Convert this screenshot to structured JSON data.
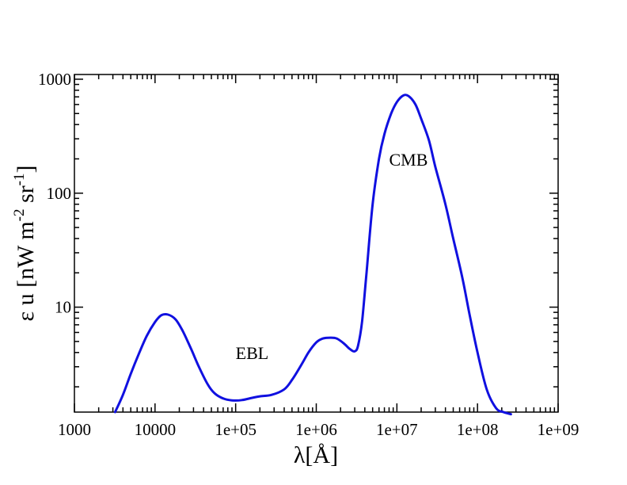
{
  "chart_data": {
    "type": "line",
    "title": "",
    "xlabel": "λ[Å]",
    "ylabel_main": "ε u [nW m",
    "ylabel_sup1": "-2",
    "ylabel_mid": " sr",
    "ylabel_sup2": "-1",
    "ylabel_end": "]",
    "x_scale": "log",
    "y_scale": "log",
    "xlim": [
      1000,
      1000000000
    ],
    "ylim": [
      1.2,
      1100
    ],
    "x_tick_labels": [
      "1000",
      "10000",
      "1e+05",
      "1e+06",
      "1e+07",
      "1e+08",
      "1e+09"
    ],
    "x_tick_values": [
      1000,
      10000,
      100000,
      1000000,
      10000000,
      100000000,
      1000000000
    ],
    "y_tick_labels": [
      "10",
      "100",
      "1000"
    ],
    "y_tick_values": [
      10,
      100,
      1000
    ],
    "grid": false,
    "annotations": [
      {
        "text": "EBL",
        "x": 100000,
        "y": 3.5
      },
      {
        "text": "CMB",
        "x": 8000000,
        "y": 175
      }
    ],
    "series": [
      {
        "name": "",
        "color": "#1010e0",
        "x": [
          3200,
          4000,
          5000,
          6300,
          7900,
          10000,
          12000,
          14500,
          18000,
          22000,
          28000,
          35000,
          45000,
          55000,
          70000,
          90000,
          120000,
          160000,
          200000,
          280000,
          400000,
          500000,
          650000,
          800000,
          1000000,
          1200000,
          1500000,
          1800000,
          2200000,
          2600000,
          3000000,
          3300000,
          3700000,
          4200000,
          5000000,
          6000000,
          7000000,
          8500000,
          10000000,
          12000000,
          14000000,
          17000000,
          20000000,
          25000000,
          30000000,
          40000000,
          50000000,
          65000000,
          80000000,
          100000000,
          130000000,
          170000000,
          210000000,
          260000000
        ],
        "y": [
          1.2,
          1.7,
          2.6,
          3.9,
          5.6,
          7.4,
          8.5,
          8.6,
          7.8,
          6.2,
          4.3,
          3.0,
          2.1,
          1.75,
          1.58,
          1.52,
          1.53,
          1.6,
          1.65,
          1.7,
          1.9,
          2.3,
          3.1,
          4.0,
          4.9,
          5.3,
          5.4,
          5.3,
          4.8,
          4.3,
          4.1,
          4.6,
          7.5,
          20,
          80,
          200,
          330,
          500,
          630,
          720,
          710,
          600,
          450,
          290,
          170,
          80,
          40,
          18,
          8.5,
          4.0,
          1.9,
          1.3,
          1.2,
          1.15
        ]
      }
    ]
  }
}
